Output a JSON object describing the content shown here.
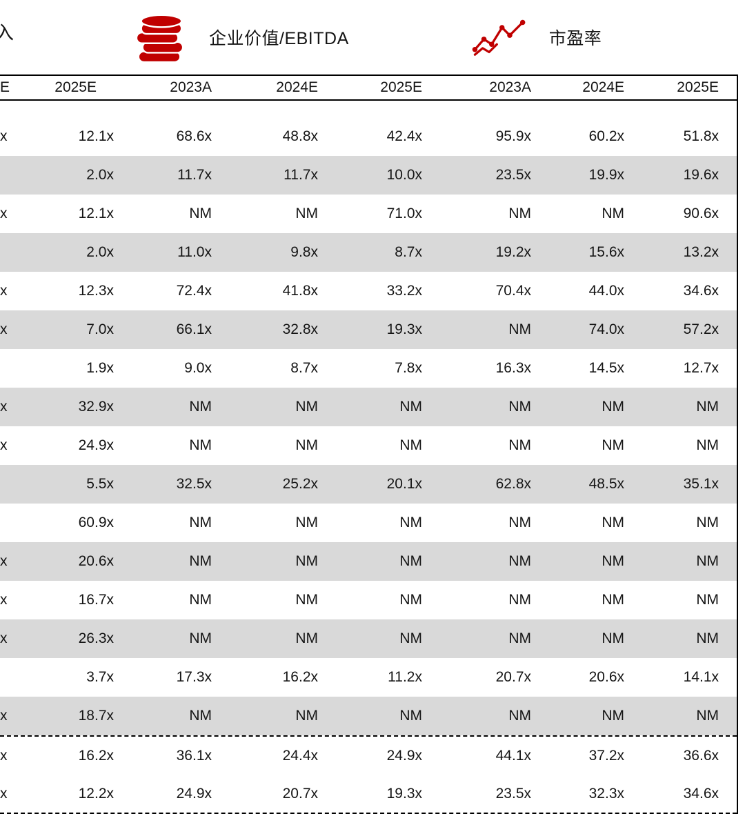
{
  "accent_color": "#c00000",
  "legend": {
    "partial_left_label": "入",
    "ev_ebitda_label": "企业价值/EBITDA",
    "pe_label": "市盈率"
  },
  "table": {
    "header": [
      "E",
      "2025E",
      "2023A",
      "2024E",
      "2025E",
      "2023A",
      "2024E",
      "2025E"
    ],
    "rows": [
      {
        "edge": "x",
        "shaded": false,
        "values": [
          "12.1x",
          "68.6x",
          "48.8x",
          "42.4x",
          "95.9x",
          "60.2x",
          "51.8x"
        ]
      },
      {
        "edge": "",
        "shaded": true,
        "values": [
          "2.0x",
          "11.7x",
          "11.7x",
          "10.0x",
          "23.5x",
          "19.9x",
          "19.6x"
        ]
      },
      {
        "edge": "x",
        "shaded": false,
        "values": [
          "12.1x",
          "NM",
          "NM",
          "71.0x",
          "NM",
          "NM",
          "90.6x"
        ]
      },
      {
        "edge": "",
        "shaded": true,
        "values": [
          "2.0x",
          "11.0x",
          "9.8x",
          "8.7x",
          "19.2x",
          "15.6x",
          "13.2x"
        ]
      },
      {
        "edge": "x",
        "shaded": false,
        "values": [
          "12.3x",
          "72.4x",
          "41.8x",
          "33.2x",
          "70.4x",
          "44.0x",
          "34.6x"
        ]
      },
      {
        "edge": "x",
        "shaded": true,
        "values": [
          "7.0x",
          "66.1x",
          "32.8x",
          "19.3x",
          "NM",
          "74.0x",
          "57.2x"
        ]
      },
      {
        "edge": "",
        "shaded": false,
        "values": [
          "1.9x",
          "9.0x",
          "8.7x",
          "7.8x",
          "16.3x",
          "14.5x",
          "12.7x"
        ]
      },
      {
        "edge": "x",
        "shaded": true,
        "values": [
          "32.9x",
          "NM",
          "NM",
          "NM",
          "NM",
          "NM",
          "NM"
        ]
      },
      {
        "edge": "x",
        "shaded": false,
        "values": [
          "24.9x",
          "NM",
          "NM",
          "NM",
          "NM",
          "NM",
          "NM"
        ]
      },
      {
        "edge": "",
        "shaded": true,
        "values": [
          "5.5x",
          "32.5x",
          "25.2x",
          "20.1x",
          "62.8x",
          "48.5x",
          "35.1x"
        ]
      },
      {
        "edge": "",
        "shaded": false,
        "values": [
          "60.9x",
          "NM",
          "NM",
          "NM",
          "NM",
          "NM",
          "NM"
        ]
      },
      {
        "edge": "x",
        "shaded": true,
        "values": [
          "20.6x",
          "NM",
          "NM",
          "NM",
          "NM",
          "NM",
          "NM"
        ]
      },
      {
        "edge": "x",
        "shaded": false,
        "values": [
          "16.7x",
          "NM",
          "NM",
          "NM",
          "NM",
          "NM",
          "NM"
        ]
      },
      {
        "edge": "x",
        "shaded": true,
        "values": [
          "26.3x",
          "NM",
          "NM",
          "NM",
          "NM",
          "NM",
          "NM"
        ]
      },
      {
        "edge": "",
        "shaded": false,
        "values": [
          "3.7x",
          "17.3x",
          "16.2x",
          "11.2x",
          "20.7x",
          "20.6x",
          "14.1x"
        ]
      },
      {
        "edge": "x",
        "shaded": true,
        "values": [
          "18.7x",
          "NM",
          "NM",
          "NM",
          "NM",
          "NM",
          "NM"
        ]
      }
    ],
    "summary_rows": [
      {
        "edge": "x",
        "values": [
          "16.2x",
          "36.1x",
          "24.4x",
          "24.9x",
          "44.1x",
          "37.2x",
          "36.6x"
        ]
      },
      {
        "edge": "x",
        "values": [
          "12.2x",
          "24.9x",
          "20.7x",
          "19.3x",
          "23.5x",
          "32.3x",
          "34.6x"
        ]
      }
    ]
  }
}
